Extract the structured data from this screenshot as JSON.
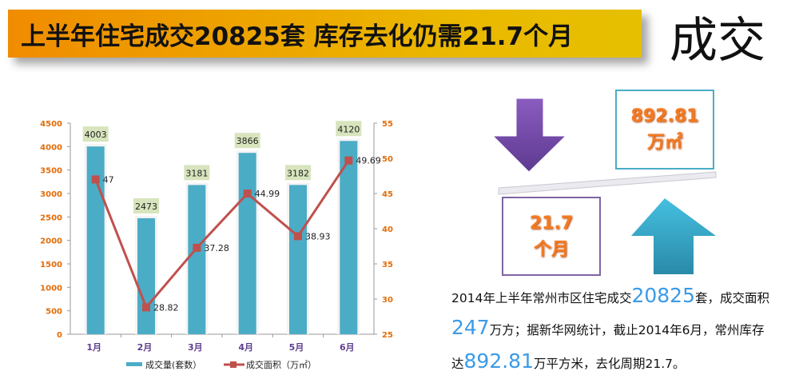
{
  "header": {
    "title": "上半年住宅成交20825套 库存去化仍需21.7个月",
    "section": "成交"
  },
  "chart_data": {
    "type": "bar+line",
    "categories": [
      "1月",
      "2月",
      "3月",
      "4月",
      "5月",
      "6月"
    ],
    "series": [
      {
        "name": "成交量(套数）",
        "type": "bar",
        "axis": "left",
        "values": [
          4003,
          2473,
          3181,
          3866,
          3182,
          4120
        ],
        "color": "#4bacc6"
      },
      {
        "name": "成交面积（万㎡）",
        "type": "line",
        "axis": "right",
        "values": [
          47,
          28.82,
          37.28,
          44.99,
          38.93,
          49.69
        ],
        "color": "#c0504d"
      }
    ],
    "ylim_left": [
      0,
      4500
    ],
    "yticks_left": [
      0,
      500,
      1000,
      1500,
      2000,
      2500,
      3000,
      3500,
      4000,
      4500
    ],
    "ylim_right": [
      25,
      55
    ],
    "yticks_right": [
      25,
      30,
      35,
      40,
      45,
      50,
      55
    ],
    "grid": false,
    "legend": "bottom"
  },
  "infographic": {
    "stock_value": "892.81",
    "stock_unit": "万㎡",
    "period_value": "21.7",
    "period_unit": "个月"
  },
  "summary": {
    "l1a": "2014年上半年常州市区住宅成交",
    "l1b": "20825",
    "l1c": "套，成交面积",
    "l2a": "247",
    "l2b": "万方；据新华网统计，截止2014年6月，常州库存",
    "l3a": "达",
    "l3b": "892.81",
    "l3c": "万平方米，去化周期21.7。"
  }
}
